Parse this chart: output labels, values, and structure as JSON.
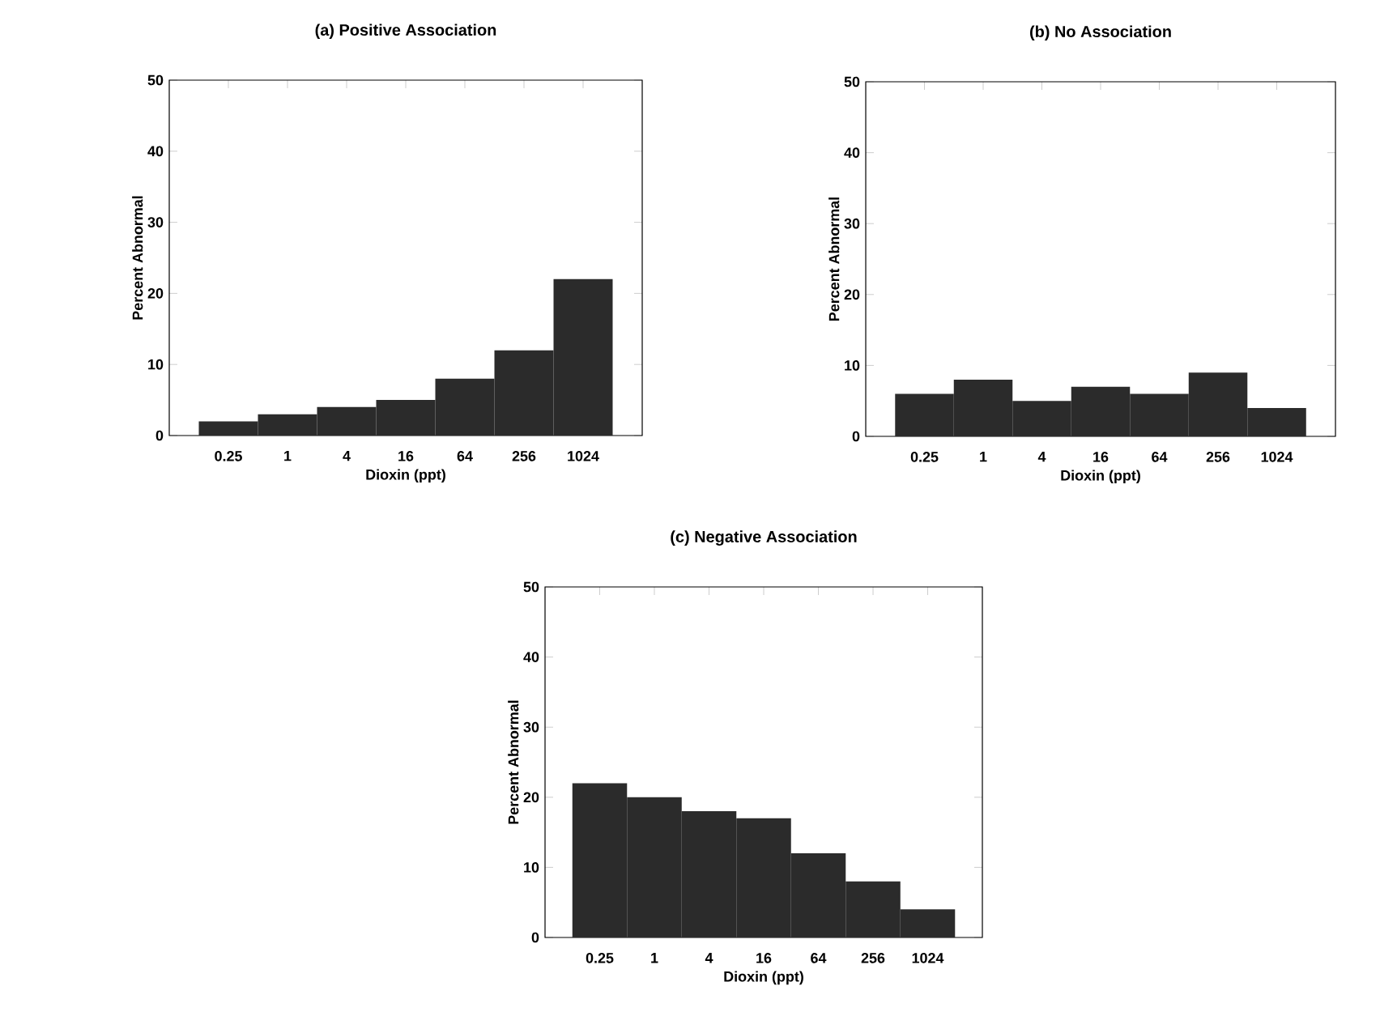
{
  "chart_data": [
    {
      "type": "histogram",
      "title": "(a) Positive Association",
      "xlabel": "Dioxin (ppt)",
      "ylabel": "Percent Abnormal",
      "log": "x",
      "bins": [
        0.125,
        0.5,
        2,
        8,
        32,
        128,
        512,
        2048
      ],
      "values": [
        2,
        3,
        4,
        5,
        8,
        12,
        22
      ],
      "color": "#2b2b2b",
      "xlim": [
        0.0625,
        4096
      ],
      "xticks": [
        0.25,
        1,
        4,
        16,
        64,
        256,
        1024
      ],
      "ylim": [
        0,
        50
      ],
      "yticks": [
        0,
        10,
        20,
        30,
        40,
        50
      ]
    },
    {
      "type": "histogram",
      "title": "(b) No Association",
      "xlabel": "Dioxin (ppt)",
      "ylabel": "Percent Abnormal",
      "log": "x",
      "bins": [
        0.125,
        0.5,
        2,
        8,
        32,
        128,
        512,
        2048
      ],
      "values": [
        6,
        8,
        5,
        7,
        6,
        9,
        4
      ],
      "color": "#2b2b2b",
      "xlim": [
        0.0625,
        4096
      ],
      "xticks": [
        0.25,
        1,
        4,
        16,
        64,
        256,
        1024
      ],
      "ylim": [
        0,
        50
      ],
      "yticks": [
        0,
        10,
        20,
        30,
        40,
        50
      ]
    },
    {
      "type": "histogram",
      "title": "(c) Negative Association",
      "xlabel": "Dioxin (ppt)",
      "ylabel": "Percent Abnormal",
      "log": "x",
      "bins": [
        0.125,
        0.5,
        2,
        8,
        32,
        128,
        512,
        2048
      ],
      "values": [
        22,
        20,
        18,
        17,
        12,
        8,
        4
      ],
      "color": "#2b2b2b",
      "xlim": [
        0.0625,
        4096
      ],
      "xticks": [
        0.25,
        1,
        4,
        16,
        64,
        256,
        1024
      ],
      "ylim": [
        0,
        50
      ],
      "yticks": [
        0,
        10,
        20,
        30,
        40,
        50
      ]
    }
  ]
}
